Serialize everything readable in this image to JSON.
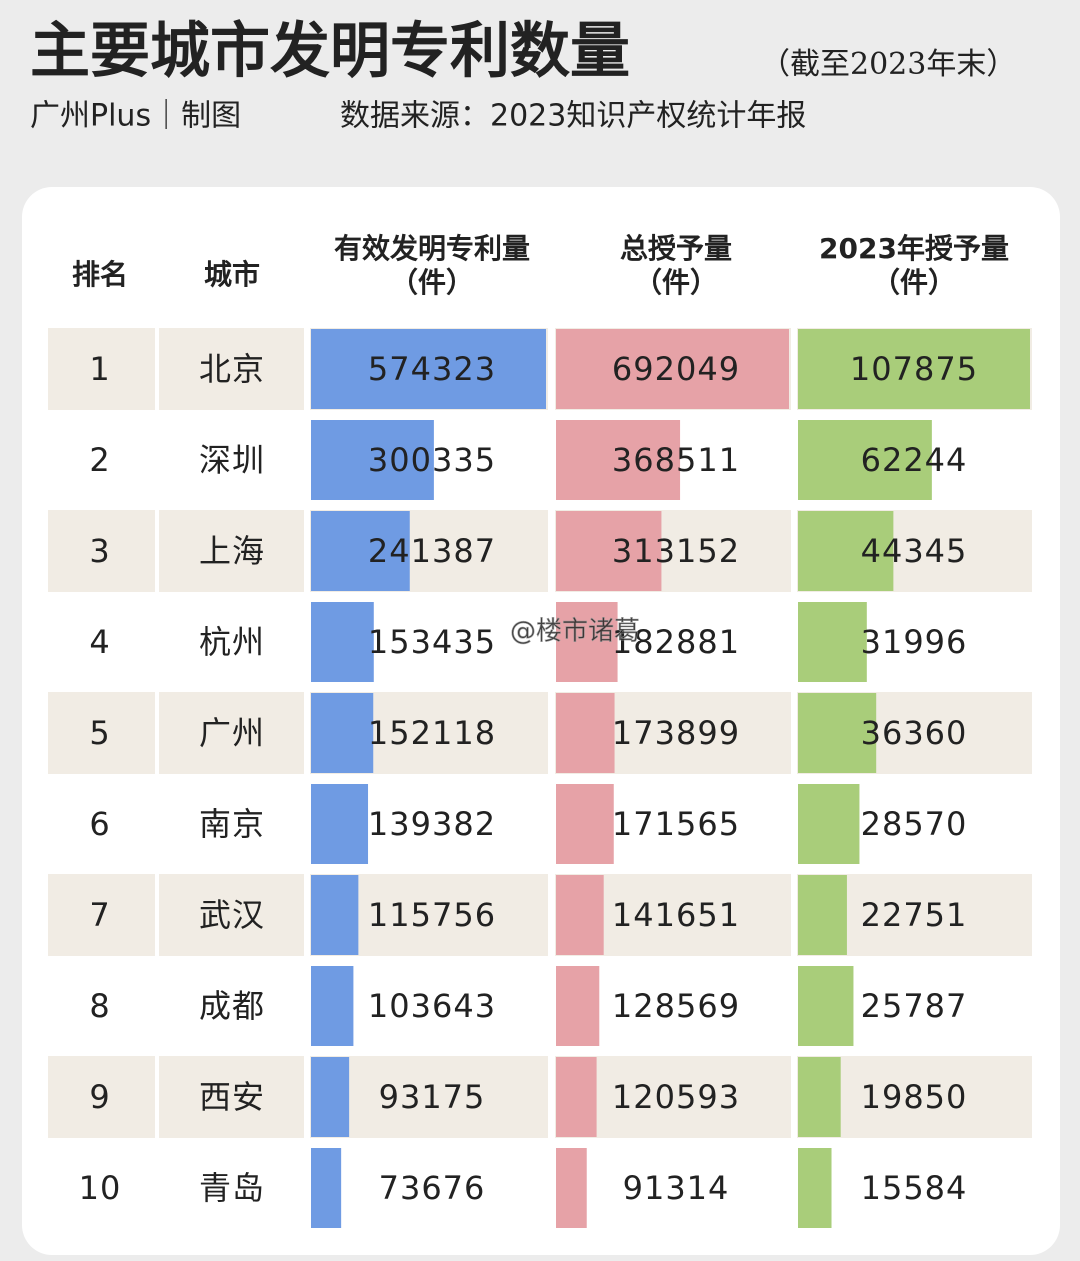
{
  "header": {
    "title": "主要城市发明专利数量",
    "subtitle": "（截至2023年末）",
    "credit": "广州Plus｜制图",
    "source": "数据来源：2023知识产权统计年报"
  },
  "table": {
    "columns": [
      [
        "排名"
      ],
      [
        "城市"
      ],
      [
        "有效发明专利量",
        "（件）"
      ],
      [
        "总授予量",
        "（件）"
      ],
      [
        "2023年授予量",
        "（件）"
      ]
    ],
    "rows": [
      [
        1,
        "北京",
        574323,
        692049,
        107875
      ],
      [
        2,
        "深圳",
        300335,
        368511,
        62244
      ],
      [
        3,
        "上海",
        241387,
        313152,
        44345
      ],
      [
        4,
        "杭州",
        153435,
        182881,
        31996
      ],
      [
        5,
        "广州",
        152118,
        173899,
        36360
      ],
      [
        6,
        "南京",
        139382,
        171565,
        28570
      ],
      [
        7,
        "武汉",
        115756,
        141651,
        22751
      ],
      [
        8,
        "成都",
        103643,
        128569,
        25787
      ],
      [
        9,
        "西安",
        93175,
        120593,
        19850
      ],
      [
        10,
        "青岛",
        73676,
        91314,
        15584
      ]
    ],
    "bar_colors": [
      "#6f9be3",
      "#e6a2a7",
      "#a9cd7a"
    ]
  },
  "watermark": "@楼市诸葛"
}
